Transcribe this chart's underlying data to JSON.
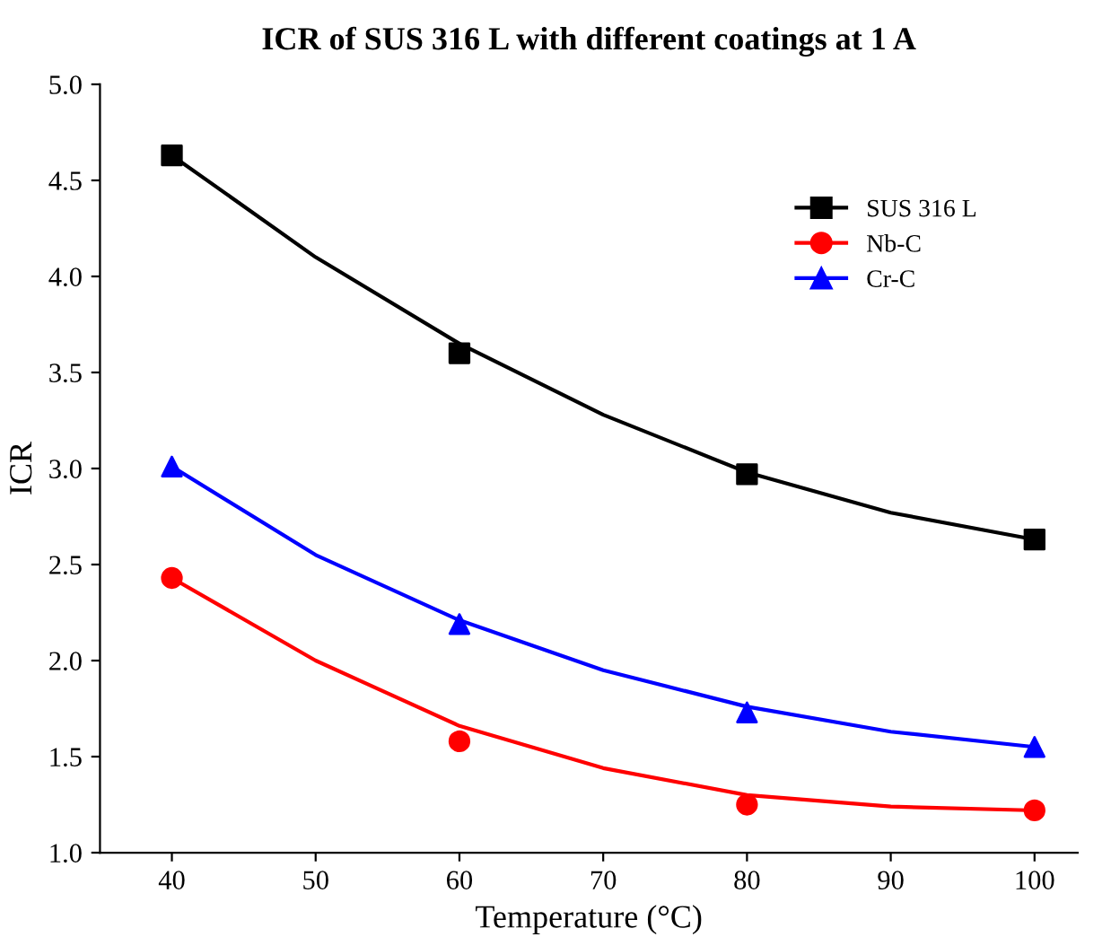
{
  "chart_data": {
    "type": "scatter",
    "title": "ICR of SUS 316 L with different coatings at 1 A",
    "xlabel": "Temperature (°C)",
    "ylabel": "ICR",
    "x": [
      40,
      60,
      80,
      100
    ],
    "series": [
      {
        "name": "SUS 316 L",
        "color": "#000000",
        "marker": "square",
        "values": [
          4.63,
          3.6,
          2.97,
          2.63
        ]
      },
      {
        "name": "Nb-C",
        "color": "#ff0000",
        "marker": "circle",
        "values": [
          2.43,
          1.58,
          1.25,
          1.22
        ]
      },
      {
        "name": "Cr-C",
        "color": "#0000ff",
        "marker": "triangle",
        "values": [
          3.01,
          2.19,
          1.73,
          1.55
        ]
      },
      {
        "type": "line",
        "color": "#000000",
        "x": [
          40,
          50,
          60,
          70,
          80,
          90,
          100
        ],
        "values": [
          4.63,
          4.1,
          3.65,
          3.28,
          2.98,
          2.77,
          2.63
        ]
      },
      {
        "type": "line",
        "color": "#ff0000",
        "x": [
          40,
          50,
          60,
          70,
          80,
          90,
          100
        ],
        "values": [
          2.43,
          2.0,
          1.66,
          1.44,
          1.3,
          1.24,
          1.22
        ]
      },
      {
        "type": "line",
        "color": "#0000ff",
        "x": [
          40,
          50,
          60,
          70,
          80,
          90,
          100
        ],
        "values": [
          3.01,
          2.55,
          2.21,
          1.95,
          1.76,
          1.63,
          1.55
        ]
      }
    ],
    "xlim": [
      35,
      103
    ],
    "xticks": [
      40,
      50,
      60,
      70,
      80,
      90,
      100
    ],
    "ylim": [
      1.0,
      5.0
    ],
    "yticks": [
      {
        "value": 1.0,
        "label": "1.0"
      },
      {
        "value": 1.5,
        "label": "1.5"
      },
      {
        "value": 2.0,
        "label": "2.0"
      },
      {
        "value": 2.5,
        "label": "2.5"
      },
      {
        "value": 3.0,
        "label": "3.0"
      },
      {
        "value": 3.5,
        "label": "3.5"
      },
      {
        "value": 4.0,
        "label": "4.0"
      },
      {
        "value": 4.5,
        "label": "4.5"
      },
      {
        "value": 5.0,
        "label": "5.0"
      }
    ],
    "grid": false,
    "legend": "top right",
    "line_style": "solid"
  }
}
